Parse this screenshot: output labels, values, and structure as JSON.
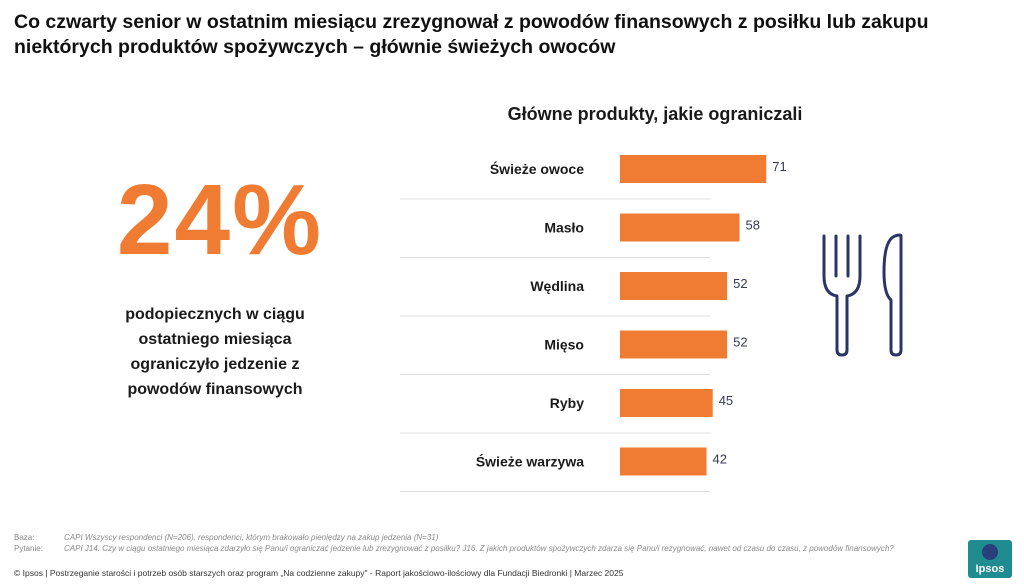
{
  "title": "Co czwarty senior w ostatnim miesiącu zrezygnował z powodów finansowych z posiłku lub zakupu niektórych produktów spożywczych – głównie świeżych owoców",
  "big_stat": "24%",
  "stat_description": "podopiecznych w ciągu ostatniego miesiąca ograniczyło jedzenie z powodów finansowych",
  "icon": "fork-knife-icon",
  "colors": {
    "bar": "#f07c34",
    "stat": "#f07c34",
    "icon": "#2a3566"
  },
  "chart_data": {
    "type": "bar",
    "orientation": "horizontal",
    "title": "Główne produkty, jakie ograniczali",
    "categories": [
      "Świeże owoce",
      "Masło",
      "Wędlina",
      "Mięso",
      "Ryby",
      "Świeże warzywa"
    ],
    "values": [
      71,
      58,
      52,
      52,
      45,
      42
    ],
    "xlim": [
      0,
      100
    ],
    "grid": false
  },
  "notes": {
    "baza_label": "Baza:",
    "baza_text": "CAPI Wszyscy respondenci (N=206), respondenci, którym brakowało pieniędzy na zakup jedzenia (N=31)",
    "pytanie_label": "Pytanie:",
    "pytanie_text": "CAPI J14. Czy w ciągu ostatniego miesiąca zdarzyło się Panu/i ograniczać jedzenie lub zrezygnować z posiłku? J16. Z jakich produktów spożywczych zdarza się Panu/i rezygnować, nawet od czasu do czasu, z powodów finansowych?"
  },
  "footer": "© Ipsos | Postrzeganie starości i potrzeb osób starszych oraz program „Na codzienne zakupy\" - Raport jakościowo-ilościowy dla Fundacji Biedronki | Marzec 2025",
  "logo": {
    "text": "Ipsos"
  }
}
